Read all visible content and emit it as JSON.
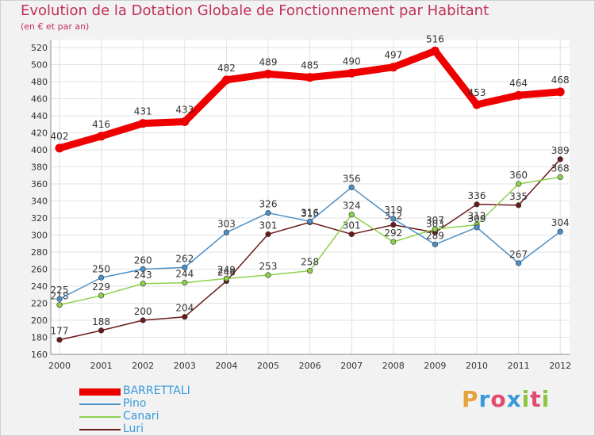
{
  "header": {
    "title": "Evolution de la Dotation Globale de Fonctionnement par Habitant",
    "subtitle": "(en € et par an)"
  },
  "logo": {
    "text": "Proxiti",
    "colors": [
      "#e8a23a",
      "#3a9ad9",
      "#e14b6f",
      "#3a9ad9",
      "#8cc63f",
      "#e14b6f",
      "#8cc63f"
    ]
  },
  "chart_data": {
    "type": "line",
    "title": "Evolution de la Dotation Globale de Fonctionnement par Habitant",
    "subtitle": "(en € et par an)",
    "xlabel": "",
    "ylabel": "",
    "categories": [
      "2000",
      "2001",
      "2002",
      "2003",
      "2004",
      "2005",
      "2006",
      "2007",
      "2008",
      "2009",
      "2010",
      "2011",
      "2012"
    ],
    "ylim": [
      160,
      520
    ],
    "yticks": [
      160,
      180,
      200,
      220,
      240,
      260,
      280,
      300,
      320,
      340,
      360,
      380,
      400,
      420,
      440,
      460,
      480,
      500,
      520
    ],
    "grid": true,
    "legend_position": "bottom-left",
    "series": [
      {
        "name": "BARRETTALI",
        "color": "#ee0000",
        "values": [
          402,
          416,
          431,
          433,
          482,
          489,
          485,
          490,
          497,
          516,
          453,
          464,
          468
        ]
      },
      {
        "name": "Pino",
        "color": "#4a90c8",
        "values": [
          225,
          250,
          260,
          262,
          303,
          326,
          316,
          356,
          319,
          289,
          309,
          267,
          304
        ]
      },
      {
        "name": "Canari",
        "color": "#8ed04b",
        "values": [
          218,
          229,
          243,
          244,
          249,
          253,
          258,
          324,
          292,
          307,
          312,
          360,
          368
        ]
      },
      {
        "name": "Luri",
        "color": "#6b1a1a",
        "values": [
          177,
          188,
          200,
          204,
          246,
          301,
          315,
          301,
          312,
          303,
          336,
          335,
          389
        ]
      }
    ]
  }
}
